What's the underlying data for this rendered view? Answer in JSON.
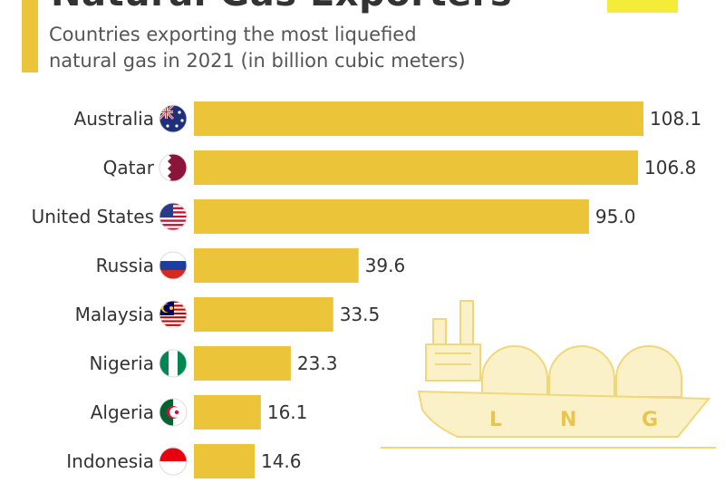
{
  "header": {
    "title": "Natural Gas Exporters",
    "subtitle": "Countries exporting the most liquefied\nnatural gas in 2021 (in billion cubic meters)"
  },
  "colors": {
    "bar": "#ecc43a",
    "accent": "#ecc43a",
    "logo": "#f5ec3a",
    "ship": "#fbf1c8",
    "ship_stroke": "#efd77a"
  },
  "illustration": {
    "ship_letters": [
      "L",
      "N",
      "G"
    ]
  },
  "chart_data": {
    "type": "bar",
    "orientation": "horizontal",
    "title": "Natural Gas Exporters",
    "subtitle": "Countries exporting the most liquefied natural gas in 2021 (in billion cubic meters)",
    "categories": [
      "Australia",
      "Qatar",
      "United States",
      "Russia",
      "Malaysia",
      "Nigeria",
      "Algeria",
      "Indonesia"
    ],
    "values": [
      108.1,
      106.8,
      95.0,
      39.6,
      33.5,
      23.3,
      16.1,
      14.6
    ],
    "value_labels": [
      "108.1",
      "106.8",
      "95.0",
      "39.6",
      "33.5",
      "23.3",
      "16.1",
      "14.6"
    ],
    "flag_icons": [
      "australia-flag-icon",
      "qatar-flag-icon",
      "united-states-flag-icon",
      "russia-flag-icon",
      "malaysia-flag-icon",
      "nigeria-flag-icon",
      "algeria-flag-icon",
      "indonesia-flag-icon"
    ],
    "xlim": [
      0,
      108.1
    ],
    "grid": false,
    "legend": "none"
  }
}
